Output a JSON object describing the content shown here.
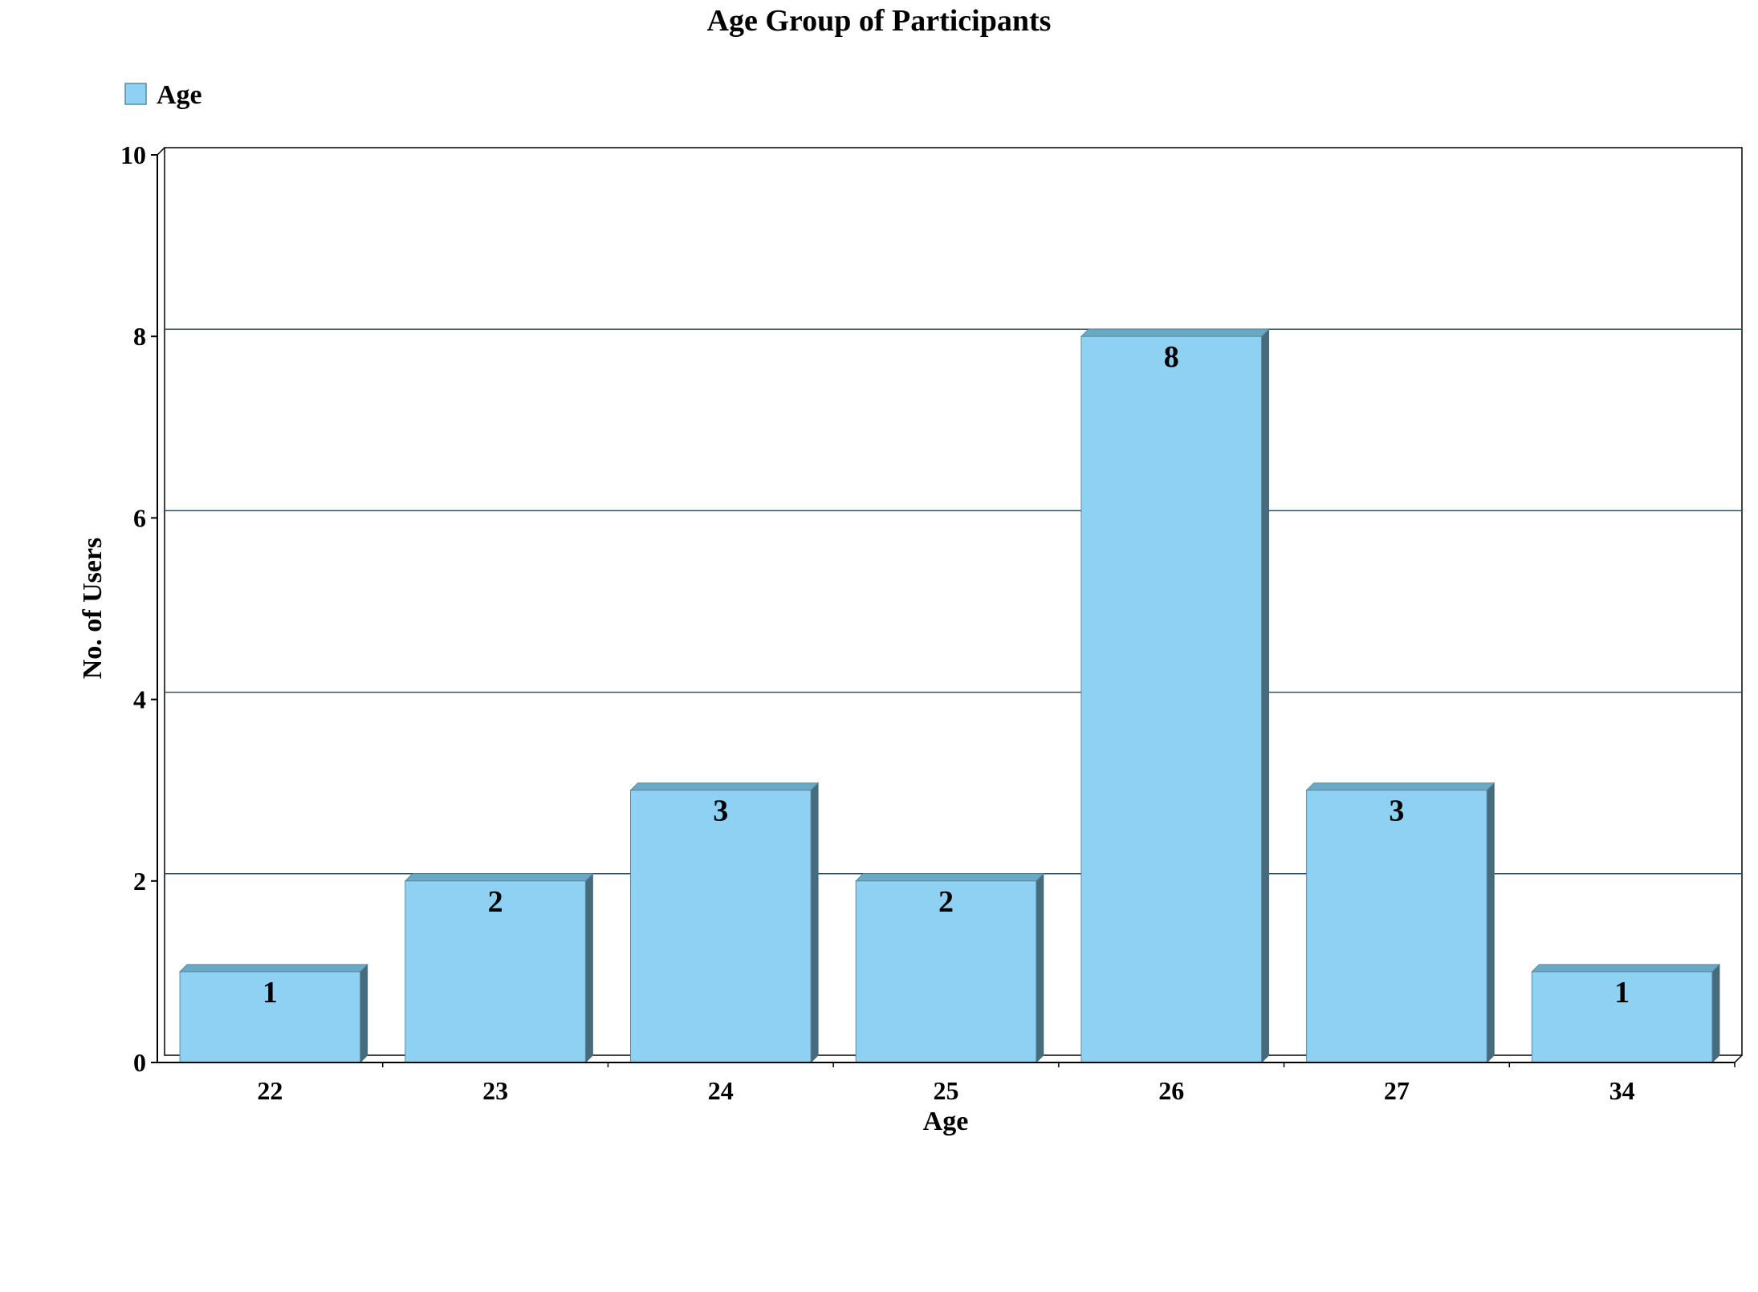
{
  "chart_data": {
    "type": "bar",
    "title": "Age Group of Participants",
    "xlabel": "Age",
    "ylabel": "No. of Users",
    "categories": [
      "22",
      "23",
      "24",
      "25",
      "26",
      "27",
      "34"
    ],
    "series": [
      {
        "name": "Age",
        "values": [
          1,
          2,
          3,
          2,
          8,
          3,
          1
        ]
      }
    ],
    "ylim": [
      0,
      10
    ],
    "yticks": [
      "0",
      "2",
      "4",
      "6",
      "8",
      "10"
    ],
    "grid": true,
    "legend_position": "top-left",
    "colors": {
      "bar_front": "#8ed1f2",
      "bar_top": "#6aa9c6",
      "bar_side": "#456b7c",
      "bar_stroke": "#5b8aa0",
      "grid_line": "#2f4f66",
      "axis_line": "#000000"
    }
  }
}
